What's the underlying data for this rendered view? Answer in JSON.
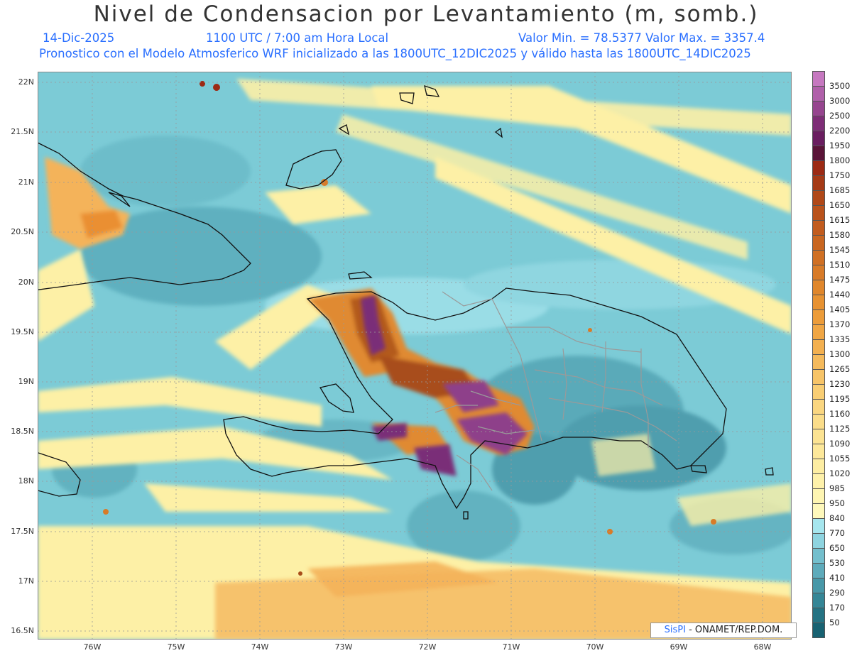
{
  "header": {
    "title": "Nivel de Condensacion por Levantamiento (m, somb.)",
    "date": "14-Dic-2025",
    "time": "1100 UTC / 7:00 am Hora Local",
    "minmax": "Valor Min. = 78.5377  Valor Max. = 3357.4",
    "forecast": "Pronostico con el Modelo Atmosferico WRF inicializado a las 1800UTC_12DIC2025 y válido hasta las  1800UTC_14DIC2025"
  },
  "axes": {
    "lat_labels": [
      "22N",
      "21.5N",
      "21N",
      "20.5N",
      "20N",
      "19.5N",
      "19N",
      "18.5N",
      "18N",
      "17.5N",
      "17N",
      "16.5N"
    ],
    "lon_labels": [
      "76W",
      "75W",
      "74W",
      "73W",
      "72W",
      "71W",
      "70W",
      "69W",
      "68W"
    ],
    "lat_values": [
      22,
      21.5,
      21,
      20.5,
      20,
      19.5,
      19,
      18.5,
      18,
      17.5,
      17,
      16.5
    ],
    "lon_values": [
      -76,
      -75,
      -74,
      -73,
      -72,
      -71,
      -70,
      -69,
      -68
    ],
    "lat_range": [
      16.4,
      22.1
    ],
    "lon_range": [
      -76.6,
      -67.6
    ]
  },
  "colorbar": {
    "labels": [
      "3500",
      "3000",
      "2500",
      "2200",
      "1950",
      "1800",
      "1750",
      "1685",
      "1650",
      "1615",
      "1580",
      "1545",
      "1510",
      "1475",
      "1440",
      "1405",
      "1370",
      "1335",
      "1300",
      "1265",
      "1230",
      "1195",
      "1160",
      "1125",
      "1090",
      "1055",
      "1020",
      "985",
      "950",
      "840",
      "770",
      "650",
      "530",
      "410",
      "290",
      "170",
      "50"
    ],
    "colors": [
      "#c678c0",
      "#b060aa",
      "#96458f",
      "#7e2d77",
      "#6a1e60",
      "#5a1438",
      "#9c2a14",
      "#a53a16",
      "#b04818",
      "#b9521b",
      "#c25c1e",
      "#c96620",
      "#d07024",
      "#d87b28",
      "#e0872c",
      "#e79232",
      "#ec9c3a",
      "#f0a644",
      "#f3b050",
      "#f5ba5c",
      "#f7c468",
      "#f9ce74",
      "#fad680",
      "#fbdd8a",
      "#fce392",
      "#fde89a",
      "#fdeda2",
      "#fef1aa",
      "#fef5b2",
      "#fef8bb",
      "#a6e6ee",
      "#8ed4e0",
      "#74bfcd",
      "#5eabbb",
      "#4898a8",
      "#358696",
      "#257383",
      "#186272"
    ],
    "levels": [
      3500,
      3000,
      2500,
      2200,
      1950,
      1800,
      1750,
      1685,
      1650,
      1615,
      1580,
      1545,
      1510,
      1475,
      1440,
      1405,
      1370,
      1335,
      1300,
      1265,
      1230,
      1195,
      1160,
      1125,
      1090,
      1055,
      1020,
      985,
      950,
      840,
      770,
      650,
      530,
      410,
      290,
      170,
      50
    ]
  },
  "credit": {
    "brand": "SisPI",
    "text": "- ONAMET/REP.DOM."
  }
}
